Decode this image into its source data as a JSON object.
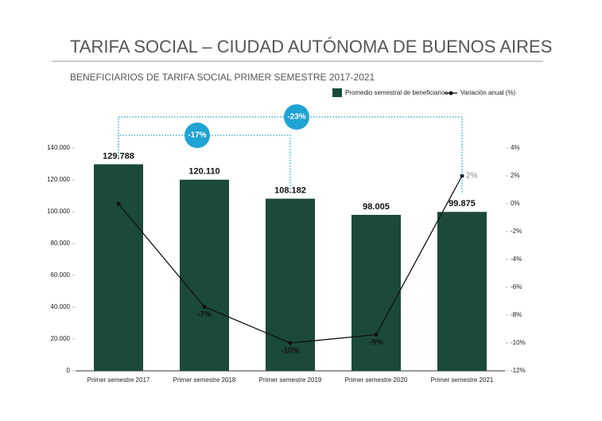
{
  "chart_data": {
    "type": "bar_line",
    "title": "TARIFA SOCIAL – CIUDAD AUTÓNOMA DE BUENOS AIRES",
    "subtitle": "BENEFICIARIOS DE TARIFA SOCIAL PRIMER SEMESTRE 2017-2021",
    "categories": [
      "Primer semestre 2017",
      "Primer semestre 2018",
      "Primer semestre 2019",
      "Primer semestre 2020",
      "Primer semestre 2021"
    ],
    "series": [
      {
        "name": "Promedio semestral de beneficiarios",
        "type": "bar",
        "color": "#1b4a38",
        "values": [
          129788,
          120110,
          108182,
          98005,
          99875
        ],
        "value_labels": [
          "129.788",
          "120.110",
          "108.182",
          "98.005",
          "99.875"
        ]
      },
      {
        "name": "Variación anual (%)",
        "type": "line",
        "axis": "y2",
        "color": "#111111",
        "values": [
          0,
          -7.4,
          -10,
          -9.4,
          2
        ],
        "value_labels": [
          null,
          "-7%",
          "-10%",
          "-9%",
          "2%"
        ]
      }
    ],
    "annotations": [
      "-17%",
      "-23%"
    ],
    "annotation_color": "#1fa3d4",
    "ylim": [
      0,
      140000
    ],
    "yticks": [
      {
        "value": 0,
        "label": "0"
      },
      {
        "value": 20000,
        "label": "20.000"
      },
      {
        "value": 40000,
        "label": "40.000"
      },
      {
        "value": 60000,
        "label": "60.000"
      },
      {
        "value": 80000,
        "label": "80.000"
      },
      {
        "value": 100000,
        "label": "100.000"
      },
      {
        "value": 120000,
        "label": "120.000"
      },
      {
        "value": 140000,
        "label": "140.000"
      }
    ],
    "y2lim": [
      -12,
      4
    ],
    "y2ticks": [
      {
        "value": 4,
        "label": "4%"
      },
      {
        "value": 2,
        "label": "2%"
      },
      {
        "value": 0,
        "label": "0%"
      },
      {
        "value": -2,
        "label": "-2%"
      },
      {
        "value": -4,
        "label": "-4%"
      },
      {
        "value": -6,
        "label": "-6%"
      },
      {
        "value": -8,
        "label": "-8%"
      },
      {
        "value": -10,
        "label": "-10%"
      },
      {
        "value": -12,
        "label": "-12%"
      }
    ]
  }
}
